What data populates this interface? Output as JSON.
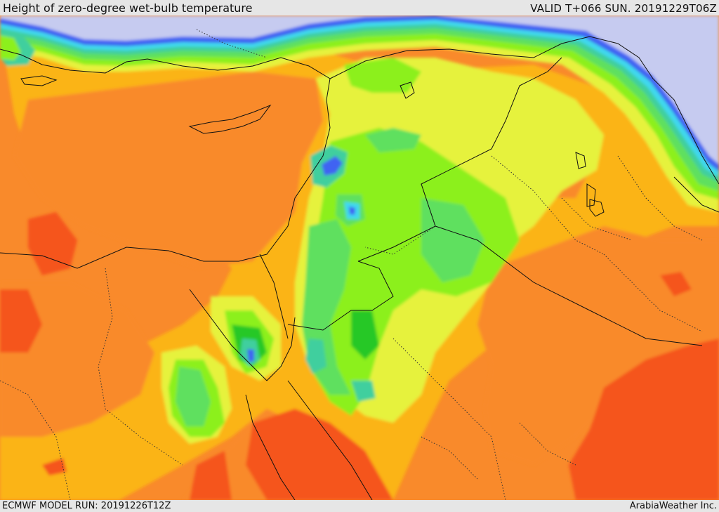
{
  "header": {
    "title": "Height of zero-degree wet-bulb temperature",
    "valid_time": "VALID T+066 SUN. 20191229T06Z"
  },
  "footer": {
    "model_run": "ECMWF MODEL RUN: 20191226T12Z",
    "credit": "ArabiaWeather Inc."
  },
  "map": {
    "palette": {
      "cold_plains": "#c6cbf0",
      "blue": "#3f63f2",
      "cyan": "#3fd9ee",
      "teal": "#3fcf9e",
      "green": "#27c827",
      "light_green": "#5fe05f",
      "lime": "#8cf01e",
      "yellow": "#e6f23c",
      "amber": "#fbb414",
      "orange": "#f98a2b",
      "red_orange": "#f5541c"
    }
  }
}
